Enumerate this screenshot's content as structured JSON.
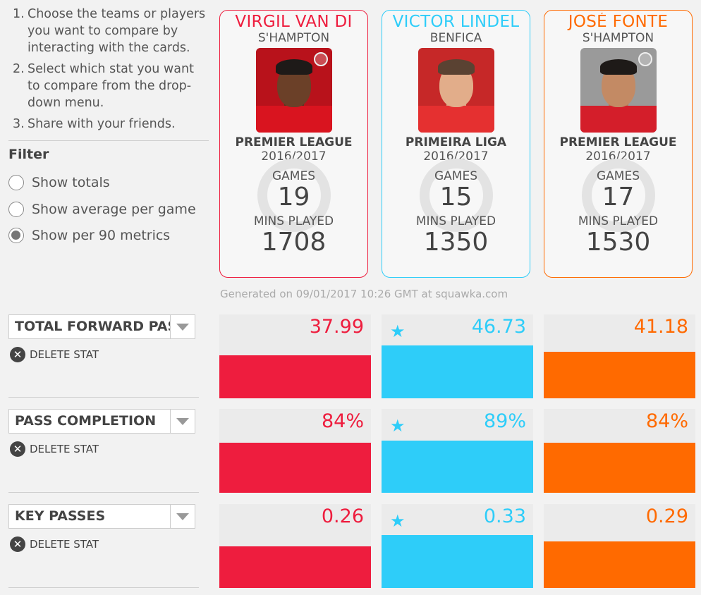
{
  "instructions": [
    {
      "num": "1.",
      "text": "Choose the teams or players you want to compare by interacting with the cards."
    },
    {
      "num": "2.",
      "text": "Select which stat you want to compare from the drop-down menu."
    },
    {
      "num": "3.",
      "text": "Share with your friends."
    }
  ],
  "filter": {
    "title": "Filter",
    "options": [
      {
        "label": "Show totals",
        "checked": false
      },
      {
        "label": "Show average per game",
        "checked": false
      },
      {
        "label": "Show per 90 metrics",
        "checked": true
      }
    ]
  },
  "colors": {
    "red": "#ee1d3e",
    "blue": "#2ecdf9",
    "orange": "#ff6a00"
  },
  "players": [
    {
      "name": "VIRGIL VAN DI",
      "team": "S'HAMPTON",
      "league": "PREMIER LEAGUE",
      "season": "2016/2017",
      "games_label": "GAMES",
      "games": "19",
      "mins_label": "MINS PLAYED",
      "mins": "1708",
      "color": "#ee1d3e"
    },
    {
      "name": "VICTOR LINDEL",
      "team": "BENFICA",
      "league": "PRIMEIRA LIGA",
      "season": "2016/2017",
      "games_label": "GAMES",
      "games": "15",
      "mins_label": "MINS PLAYED",
      "mins": "1350",
      "color": "#2ecdf9"
    },
    {
      "name": "JOSÉ FONTE",
      "team": "S'HAMPTON",
      "league": "PREMIER LEAGUE",
      "season": "2016/2017",
      "games_label": "GAMES",
      "games": "17",
      "mins_label": "MINS PLAYED",
      "mins": "1530",
      "color": "#ff6a00"
    }
  ],
  "generated": "Generated on 09/01/2017 10:26 GMT at squawka.com",
  "stats": [
    {
      "label": "TOTAL FORWARD PASSES",
      "delete_label": "DELETE STAT",
      "values": [
        "37.99",
        "46.73",
        "41.18"
      ],
      "best_index": 1
    },
    {
      "label": "PASS COMPLETION",
      "delete_label": "DELETE STAT",
      "values": [
        "84%",
        "89%",
        "84%"
      ],
      "best_index": 1
    },
    {
      "label": "KEY PASSES",
      "delete_label": "DELETE STAT",
      "values": [
        "0.26",
        "0.33",
        "0.29"
      ],
      "best_index": 1
    }
  ]
}
